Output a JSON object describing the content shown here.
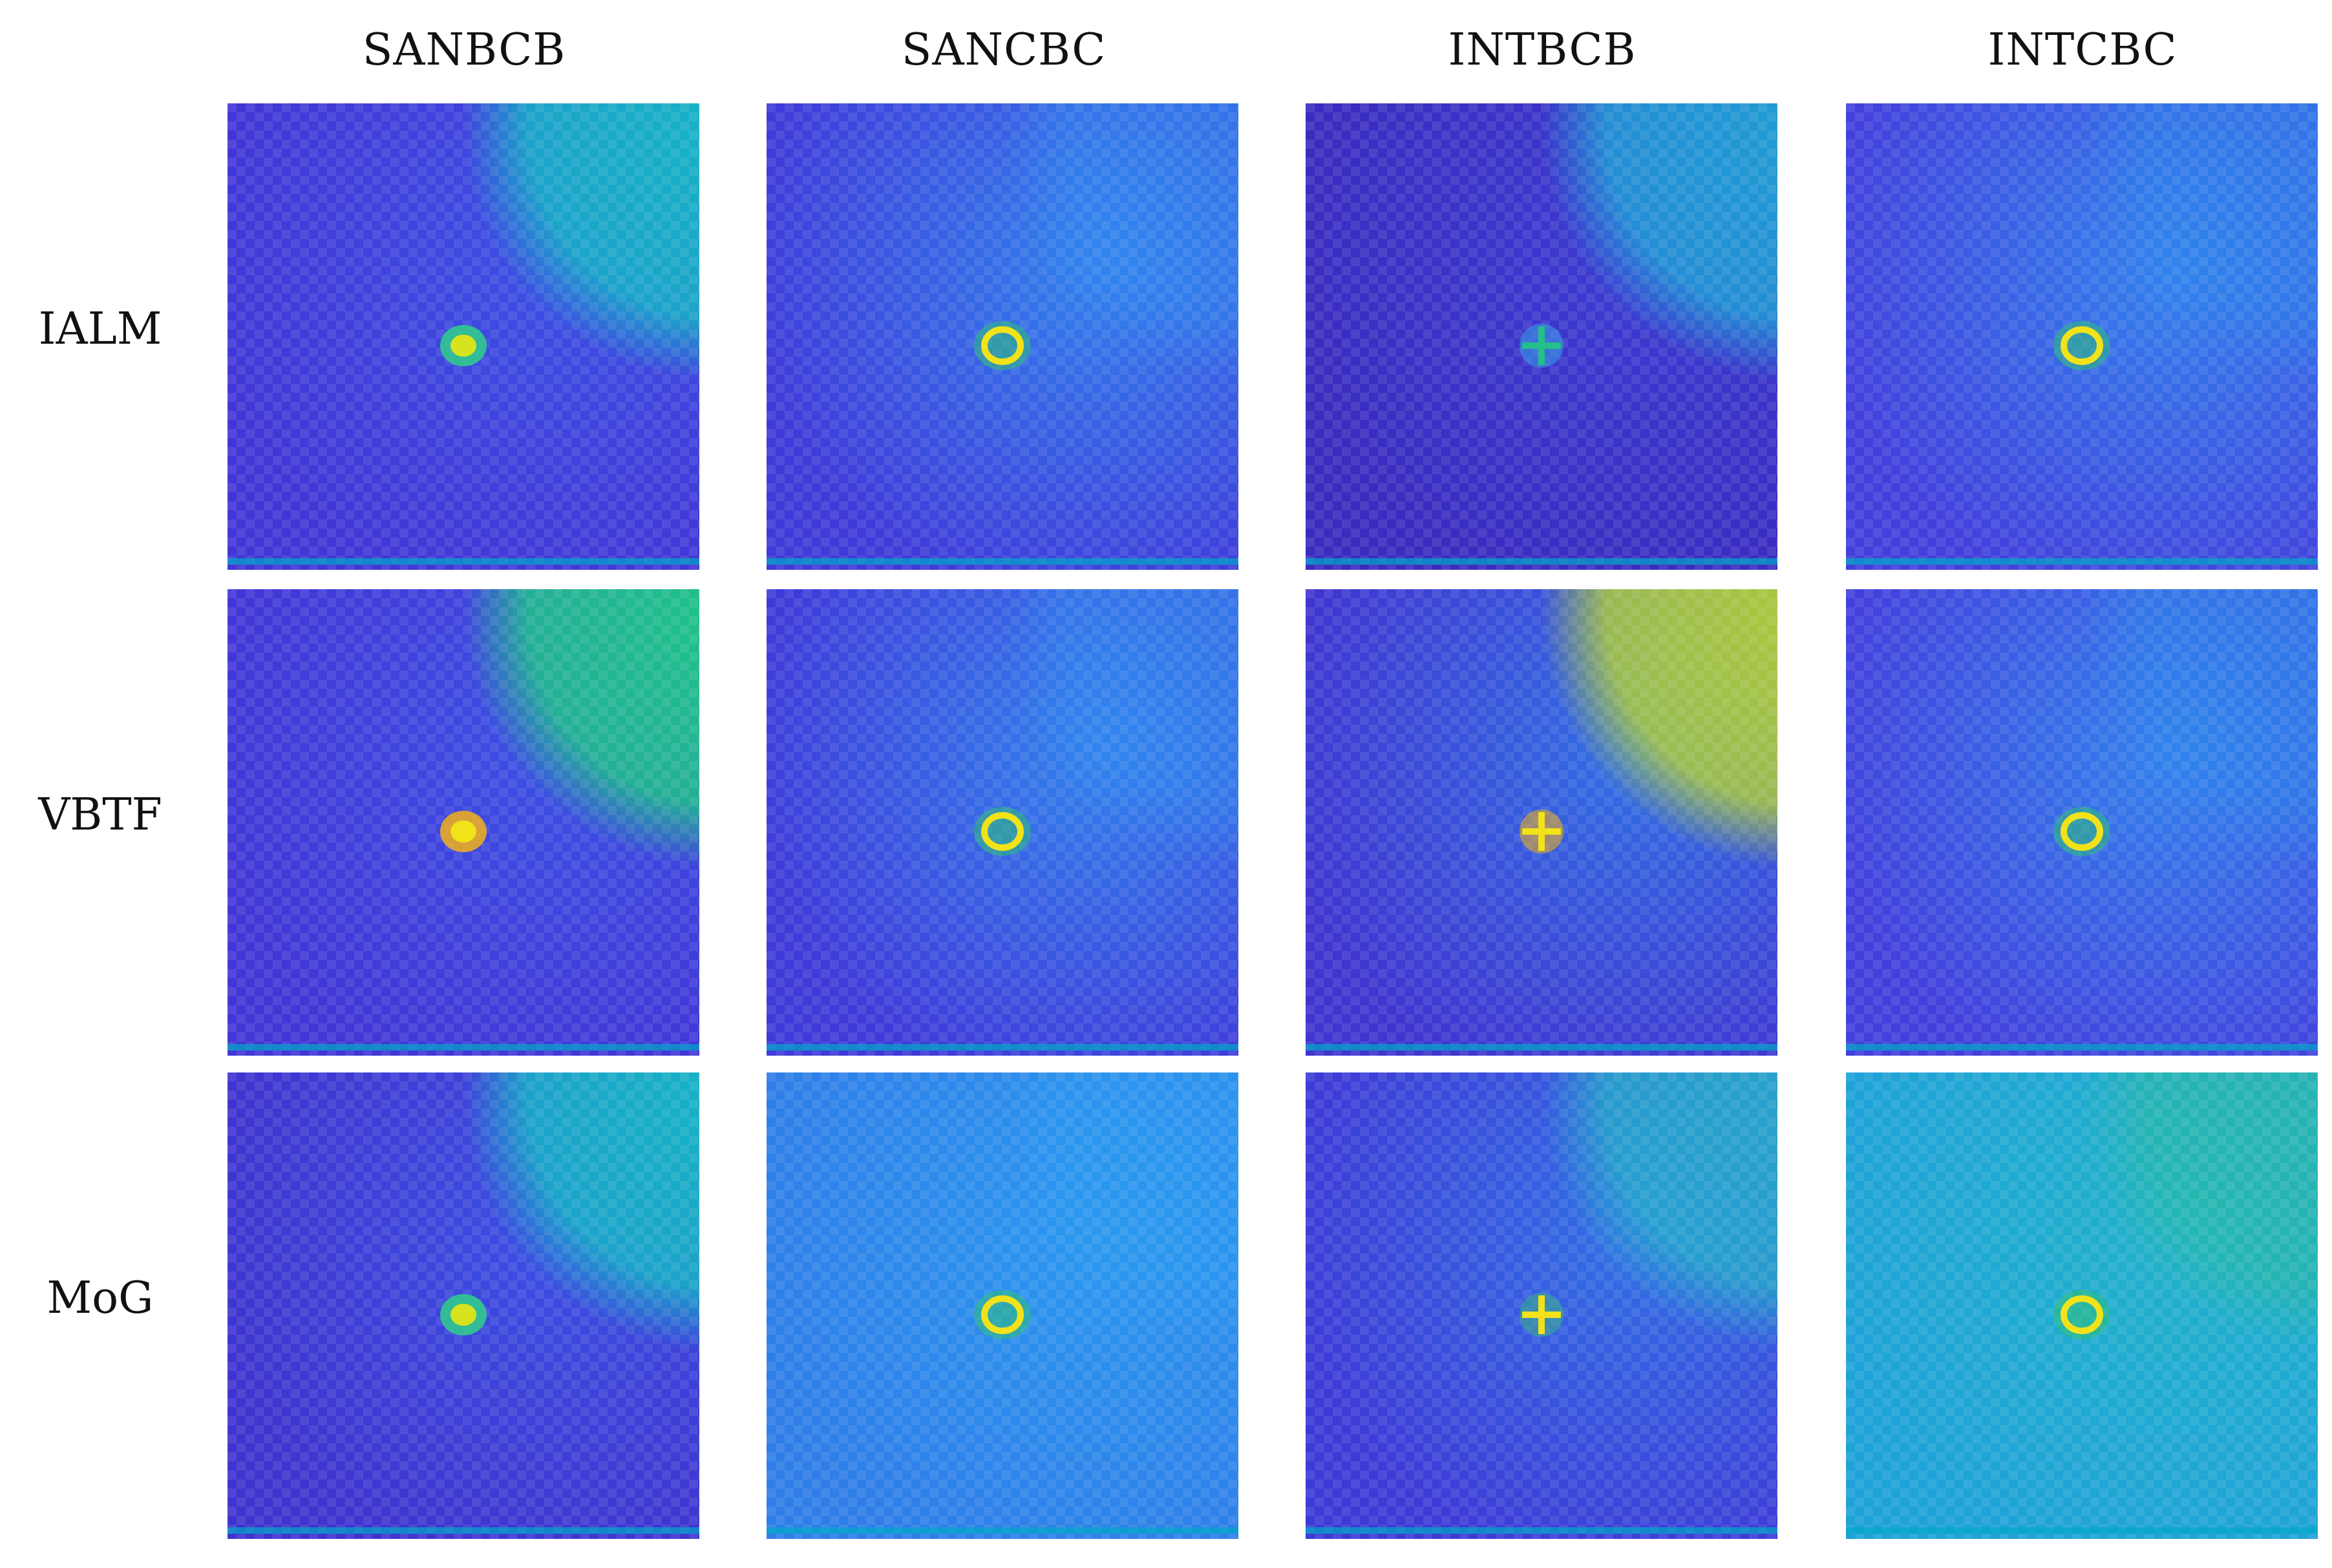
{
  "columns": [
    "SANBCB",
    "SANCBC",
    "INTBCB",
    "INTCBC"
  ],
  "rows": [
    "IALM",
    "VBTF",
    "MoG"
  ],
  "palette": {
    "deep": "#3a2bbf",
    "base": "#4338d8",
    "mid": "#2f7df0",
    "cyan": "#1fb4d0",
    "green": "#22c08a",
    "yellow": "#f2e21a",
    "edge": "#00a8c8"
  },
  "panels": [
    [
      {
        "name": "sanbcb-ialm",
        "base": "#4236d6",
        "glow": "#3a55e6",
        "corner": "#16b3c6",
        "corner_op": 1.0,
        "defect": "blob",
        "defect_color": "#2fd08a",
        "defect_core": "#d7e31f"
      },
      {
        "name": "sancbc-ialm",
        "base": "#3f3ad9",
        "glow": "#2f8ef0",
        "corner": "#2f8ef0",
        "corner_op": 0.5,
        "defect": "ring",
        "defect_color": "#2fbf7a",
        "defect_core": "#f2e21a"
      },
      {
        "name": "intbcb-ialm",
        "base": "#3a2cbf",
        "glow": "#3c3ed6",
        "corner": "#1da8d6",
        "corner_op": 0.9,
        "defect": "cross",
        "defect_color": "#3aa0e8",
        "defect_core": "#22c08a"
      },
      {
        "name": "intcbc-ialm",
        "base": "#4240dc",
        "glow": "#2f8ef0",
        "corner": "#2c84ea",
        "corner_op": 0.6,
        "defect": "ring",
        "defect_color": "#2fbf7a",
        "defect_core": "#f2e21a"
      }
    ],
    [
      {
        "name": "sanbcb-vbtf",
        "base": "#4236d6",
        "glow": "#3a55e6",
        "corner": "#1fc28a",
        "corner_op": 1.0,
        "defect": "blob",
        "defect_color": "#f2b21a",
        "defect_core": "#f2e21a"
      },
      {
        "name": "sancbc-vbtf",
        "base": "#3f3ad9",
        "glow": "#2f8ef0",
        "corner": "#2f8ef0",
        "corner_op": 0.5,
        "defect": "ring",
        "defect_color": "#2fbf7a",
        "defect_core": "#f2e21a"
      },
      {
        "name": "intbcb-vbtf",
        "base": "#3f36d0",
        "glow": "#2f7ae8",
        "corner": "#b8d62a",
        "corner_op": 0.9,
        "defect": "cross",
        "defect_color": "#f2b21a",
        "defect_core": "#f2e21a"
      },
      {
        "name": "intcbc-vbtf",
        "base": "#4240dc",
        "glow": "#2f8ef0",
        "corner": "#2c84ea",
        "corner_op": 0.6,
        "defect": "ring",
        "defect_color": "#2fbf7a",
        "defect_core": "#f2e21a"
      }
    ],
    [
      {
        "name": "sanbcb-mog",
        "base": "#3f34cf",
        "glow": "#3a55e6",
        "corner": "#16b3c6",
        "corner_op": 1.0,
        "defect": "blob",
        "defect_color": "#2fd08a",
        "defect_core": "#d7e31f"
      },
      {
        "name": "sancbc-mog",
        "base": "#2f7ee8",
        "glow": "#2a9cf0",
        "corner": "#2a9cf0",
        "corner_op": 0.5,
        "defect": "ring",
        "defect_color": "#2fbf7a",
        "defect_core": "#f2e21a"
      },
      {
        "name": "intbcb-mog",
        "base": "#3d3ad6",
        "glow": "#2f7ae8",
        "corner": "#22b7c6",
        "corner_op": 0.8,
        "defect": "cross",
        "defect_color": "#3ab08a",
        "defect_core": "#f2e21a"
      },
      {
        "name": "intcbc-mog",
        "base": "#1fa2d8",
        "glow": "#22b4c8",
        "corner": "#2cc08a",
        "corner_op": 0.45,
        "defect": "ring",
        "defect_color": "#2fbf7a",
        "defect_core": "#f2e21a"
      }
    ]
  ]
}
